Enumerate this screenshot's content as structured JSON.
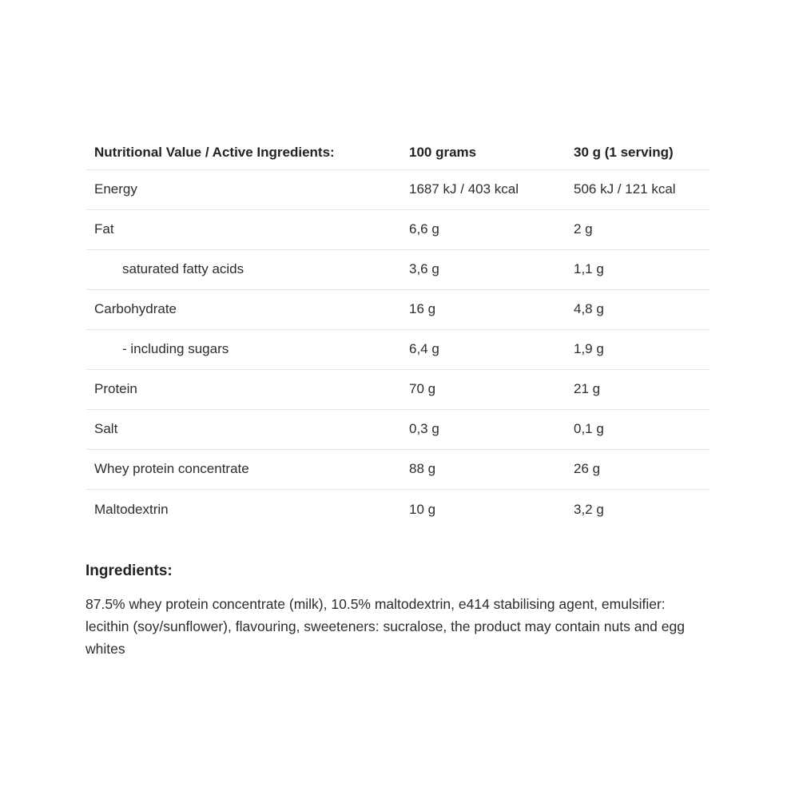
{
  "table": {
    "headers": {
      "label_col": "Nutritional Value / Active Ingredients:",
      "per_100g_col": "100 grams",
      "per_serving_col": "30 g (1 serving)"
    },
    "rows": [
      {
        "label": "Energy",
        "per_100g": "1687 kJ / 403 kcal",
        "per_serving": "506 kJ / 121 kcal"
      },
      {
        "label": "Fat",
        "per_100g": "6,6 g",
        "per_serving": "2 g"
      },
      {
        "label": "saturated fatty acids",
        "per_100g": "3,6 g",
        "per_serving": "1,1 g"
      },
      {
        "label": "Carbohydrate",
        "per_100g": "16 g",
        "per_serving": "4,8 g"
      },
      {
        "label": "- including sugars",
        "per_100g": "6,4 g",
        "per_serving": "1,9 g"
      },
      {
        "label": "Protein",
        "per_100g": "70 g",
        "per_serving": "21 g"
      },
      {
        "label": "Salt",
        "per_100g": "0,3 g",
        "per_serving": "0,1 g"
      },
      {
        "label": "Whey protein concentrate",
        "per_100g": "88 g",
        "per_serving": "26 g"
      },
      {
        "label": "Maltodextrin",
        "per_100g": "10 g",
        "per_serving": "3,2 g"
      }
    ]
  },
  "ingredients": {
    "heading": "Ingredients:",
    "text": "87.5% whey protein concentrate (milk), 10.5% maltodextrin, e414 stabilising agent, emulsifier: lecithin (soy/sunflower), flavouring, sweeteners: sucralose, the product may contain nuts and egg whites"
  },
  "colors": {
    "background": "#ffffff",
    "text": "#2d2d2d",
    "heading_text": "#222222",
    "divider": "#e4e4e4"
  }
}
